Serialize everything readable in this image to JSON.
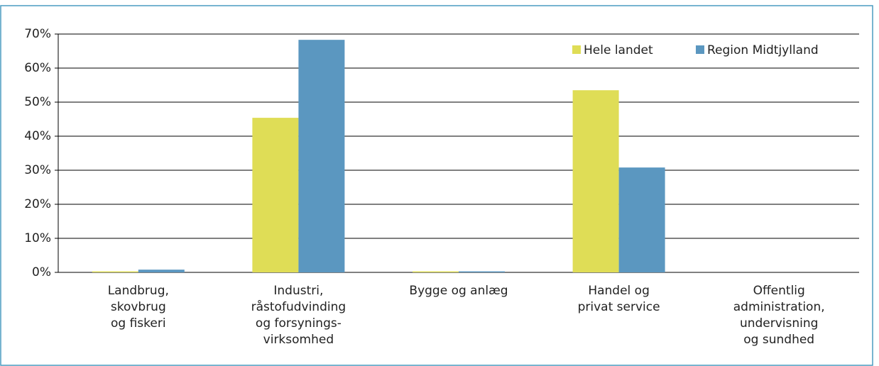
{
  "chart_data": {
    "type": "bar",
    "categories": [
      [
        "Landbrug,",
        "skovbrug",
        "og fiskeri"
      ],
      [
        "Industri,",
        "råstofudvinding",
        "og forsynings-",
        "virksomhed"
      ],
      [
        "Bygge og anlæg"
      ],
      [
        "Handel og",
        "privat service"
      ],
      [
        "Offentlig",
        "administration,",
        "undervisning",
        "og sundhed"
      ]
    ],
    "series": [
      {
        "name": "Hele landet",
        "color": "#dfdd56",
        "values": [
          0.3,
          45.4,
          0.3,
          53.5,
          0
        ]
      },
      {
        "name": "Region Midtjylland",
        "color": "#5b97c0",
        "values": [
          0.8,
          68.3,
          0.3,
          30.8,
          0
        ]
      }
    ],
    "ylim": [
      0,
      70
    ],
    "yticks": [
      {
        "value": 0,
        "label": "0%"
      },
      {
        "value": 10,
        "label": "10%"
      },
      {
        "value": 20,
        "label": "20%"
      },
      {
        "value": 30,
        "label": "30%"
      },
      {
        "value": 40,
        "label": "40%"
      },
      {
        "value": 50,
        "label": "50%"
      },
      {
        "value": 60,
        "label": "60%"
      },
      {
        "value": 70,
        "label": "70%"
      }
    ],
    "grid": true,
    "legend": "top-right"
  }
}
